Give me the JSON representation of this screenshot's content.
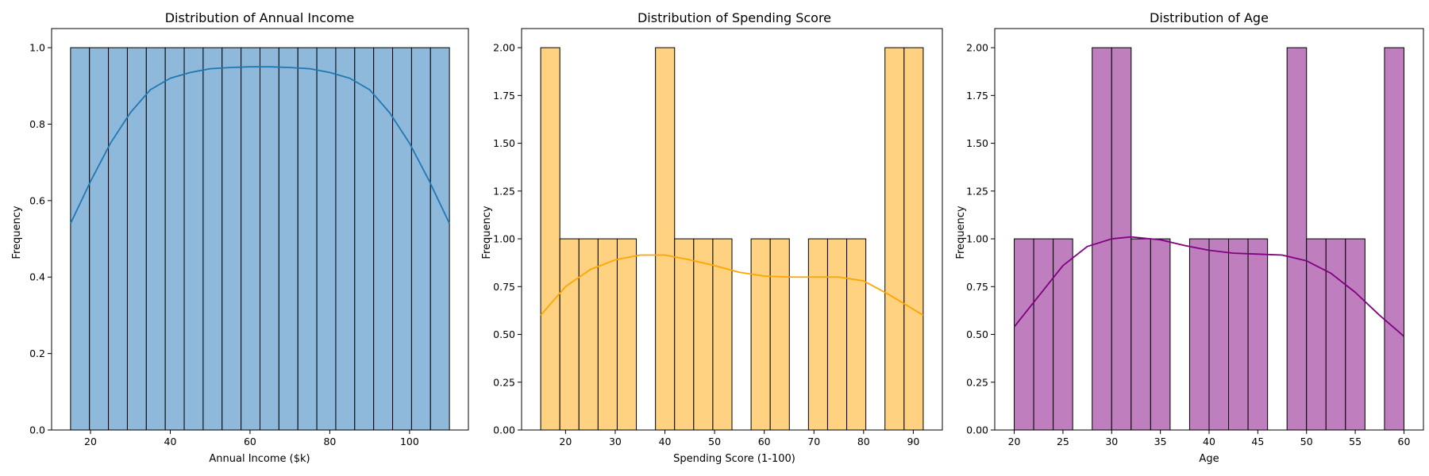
{
  "chart_data": [
    {
      "type": "bar",
      "title": "Distribution of Annual Income",
      "xlabel": "Annual Income ($k)",
      "ylabel": "Frequency",
      "xlim": [
        10.25,
        114.75
      ],
      "ylim": [
        0,
        1.05
      ],
      "xticks": [
        20,
        40,
        60,
        80,
        100
      ],
      "yticks": [
        0.0,
        0.2,
        0.4,
        0.6,
        0.8,
        1.0
      ],
      "ytick_labels": [
        "0.0",
        "0.2",
        "0.4",
        "0.6",
        "0.8",
        "1.0"
      ],
      "bin_edges": [
        15,
        19.75,
        24.5,
        29.25,
        34,
        38.75,
        43.5,
        48.25,
        53,
        57.75,
        62.5,
        67.25,
        72,
        76.75,
        81.5,
        86.25,
        91,
        95.75,
        100.5,
        105.25,
        110
      ],
      "values": [
        1,
        1,
        1,
        1,
        1,
        1,
        1,
        1,
        1,
        1,
        1,
        1,
        1,
        1,
        1,
        1,
        1,
        1,
        1,
        1
      ],
      "kde": {
        "x": [
          15,
          20,
          25,
          30,
          35,
          40,
          45,
          50,
          55,
          60,
          62.5,
          65,
          70,
          75,
          80,
          85,
          90,
          95,
          100,
          105,
          110
        ],
        "y": [
          0.54,
          0.65,
          0.75,
          0.83,
          0.89,
          0.92,
          0.935,
          0.945,
          0.948,
          0.95,
          0.95,
          0.95,
          0.948,
          0.945,
          0.935,
          0.92,
          0.89,
          0.83,
          0.75,
          0.65,
          0.54
        ]
      },
      "bar_color": "#8FB9DB",
      "line_color": "#1F77B4",
      "grid": false
    },
    {
      "type": "bar",
      "title": "Distribution of Spending Score",
      "xlabel": "Spending Score (1-100)",
      "ylabel": "Frequency",
      "xlim": [
        11.15,
        95.85
      ],
      "ylim": [
        0,
        2.1
      ],
      "xticks": [
        20,
        30,
        40,
        50,
        60,
        70,
        80,
        90
      ],
      "yticks": [
        0,
        0.25,
        0.5,
        0.75,
        1.0,
        1.25,
        1.5,
        1.75,
        2.0
      ],
      "ytick_labels": [
        "0.00",
        "0.25",
        "0.50",
        "0.75",
        "1.00",
        "1.25",
        "1.50",
        "1.75",
        "2.00"
      ],
      "bin_edges": [
        15,
        18.85,
        22.7,
        26.55,
        30.4,
        34.25,
        38.1,
        41.95,
        45.8,
        49.65,
        53.5,
        57.35,
        61.2,
        65.05,
        68.9,
        72.75,
        76.6,
        80.45,
        84.3,
        88.15,
        92
      ],
      "values": [
        2,
        1,
        1,
        1,
        1,
        0,
        2,
        1,
        1,
        1,
        0,
        1,
        1,
        0,
        1,
        1,
        1,
        0,
        2,
        2
      ],
      "kde": {
        "x": [
          15,
          20,
          25,
          30,
          35,
          40,
          45,
          50,
          55,
          60,
          65,
          70,
          75,
          80,
          85,
          92
        ],
        "y": [
          0.6,
          0.75,
          0.84,
          0.89,
          0.915,
          0.915,
          0.89,
          0.86,
          0.825,
          0.805,
          0.8,
          0.8,
          0.8,
          0.78,
          0.71,
          0.6
        ]
      },
      "bar_color": "#FED280",
      "line_color": "#FFA500",
      "grid": false
    },
    {
      "type": "bar",
      "title": "Distribution of Age",
      "xlabel": "Age",
      "ylabel": "Frequency",
      "xlim": [
        18,
        62
      ],
      "ylim": [
        0,
        2.1
      ],
      "xticks": [
        20,
        25,
        30,
        35,
        40,
        45,
        50,
        55,
        60
      ],
      "yticks": [
        0,
        0.25,
        0.5,
        0.75,
        1.0,
        1.25,
        1.5,
        1.75,
        2.0
      ],
      "ytick_labels": [
        "0.00",
        "0.25",
        "0.50",
        "0.75",
        "1.00",
        "1.25",
        "1.50",
        "1.75",
        "2.00"
      ],
      "bin_edges": [
        20,
        22,
        24,
        26,
        28,
        30,
        32,
        34,
        36,
        38,
        40,
        42,
        44,
        46,
        48,
        50,
        52,
        54,
        56,
        58,
        60
      ],
      "values": [
        1,
        1,
        1,
        0,
        2,
        2,
        1,
        1,
        0,
        1,
        1,
        1,
        1,
        0,
        2,
        1,
        1,
        1,
        0,
        2
      ],
      "kde": {
        "x": [
          20,
          22.5,
          25,
          27.5,
          30,
          32,
          35,
          37.5,
          40,
          42.5,
          45,
          47.5,
          50,
          52.5,
          55,
          57.5,
          60
        ],
        "y": [
          0.54,
          0.7,
          0.86,
          0.96,
          1.0,
          1.01,
          0.995,
          0.965,
          0.94,
          0.925,
          0.92,
          0.915,
          0.885,
          0.82,
          0.72,
          0.6,
          0.49
        ]
      },
      "bar_color": "#BF7FBF",
      "line_color": "#800080",
      "grid": false
    }
  ]
}
